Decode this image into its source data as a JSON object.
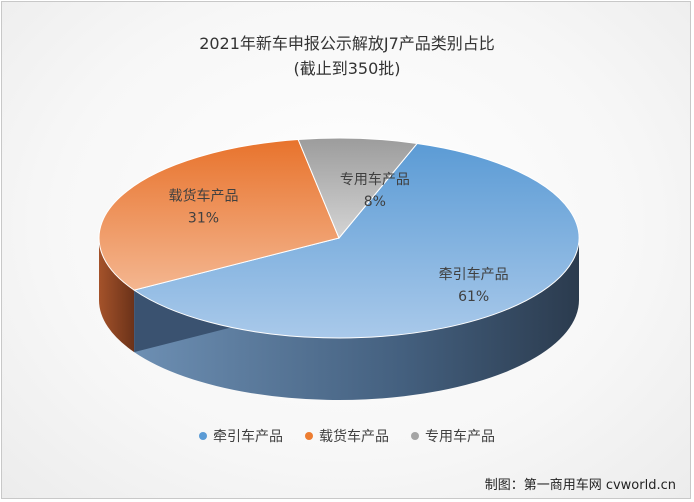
{
  "chart_data": {
    "type": "pie",
    "title": "2021年新车申报公示解放J7产品类别占比",
    "subtitle": "(截止到350批)",
    "series": [
      {
        "name": "牵引车产品",
        "value": 61,
        "label": "61%",
        "color": "#5b9bd5"
      },
      {
        "name": "载货车产品",
        "value": 31,
        "label": "31%",
        "color": "#ed7d31"
      },
      {
        "name": "专用车产品",
        "value": 8,
        "label": "8%",
        "color": "#a5a5a5"
      }
    ],
    "legend_position": "bottom"
  },
  "credit": "制图：第一商用车网 cvworld.cn"
}
